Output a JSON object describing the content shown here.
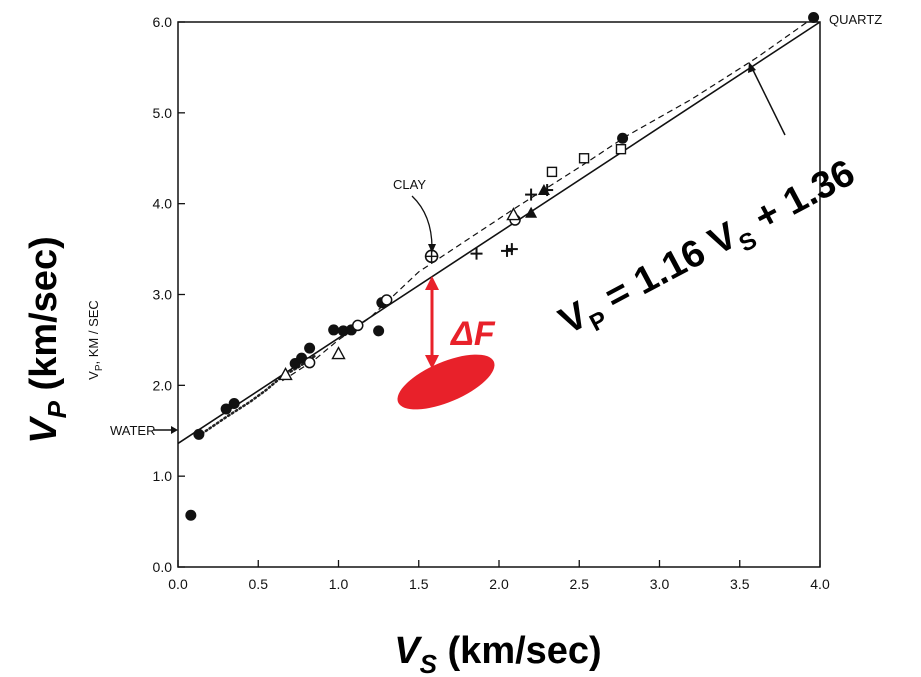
{
  "chart_data": {
    "type": "scatter",
    "xlabel": {
      "main": "V",
      "sub": "S",
      "rest": " (km/sec)"
    },
    "ylabel": {
      "main": "V",
      "sub": "P",
      "rest": " (km/sec)"
    },
    "inner_ylabel": {
      "main": "V",
      "sub": "P",
      "rest": ", KM / SEC"
    },
    "xlim": [
      0,
      4.0
    ],
    "ylim": [
      0,
      6.0
    ],
    "x_ticks": [
      "0.0",
      "0.5",
      "1.0",
      "1.5",
      "2.0",
      "2.5",
      "3.0",
      "3.5",
      "4.0"
    ],
    "y_ticks": [
      "0.0",
      "1.0",
      "2.0",
      "3.0",
      "4.0",
      "5.0",
      "6.0"
    ],
    "grid": false,
    "fit_line": {
      "slope": 1.16,
      "intercept": 1.36,
      "equation": {
        "v": "V",
        "p": "P",
        "eq": " = 1.16 V",
        "s": "S",
        "tail": " + 1.36"
      }
    },
    "annotations": {
      "clay": {
        "label": "CLAY",
        "x": 1.58,
        "y": 3.42
      },
      "water": {
        "label": "WATER",
        "y": 1.5
      },
      "quartz": {
        "label": "QUARTZ",
        "x": 3.96,
        "y": 6.05
      },
      "delta": {
        "label": "ΔF",
        "color": "#e8212a"
      }
    },
    "series": [
      {
        "marker": "filled-circle",
        "points": [
          [
            0.08,
            0.57
          ],
          [
            0.13,
            1.46
          ],
          [
            0.3,
            1.74
          ],
          [
            0.35,
            1.8
          ],
          [
            0.73,
            2.24
          ],
          [
            0.77,
            2.3
          ],
          [
            0.82,
            2.41
          ],
          [
            0.97,
            2.61
          ],
          [
            1.03,
            2.6
          ],
          [
            1.08,
            2.61
          ],
          [
            1.25,
            2.6
          ],
          [
            1.27,
            2.91
          ],
          [
            2.77,
            4.72
          ],
          [
            3.96,
            6.05
          ]
        ]
      },
      {
        "marker": "open-circle",
        "points": [
          [
            0.82,
            2.25
          ],
          [
            1.12,
            2.66
          ],
          [
            1.3,
            2.94
          ],
          [
            2.1,
            3.82
          ]
        ]
      },
      {
        "marker": "open-triangle",
        "points": [
          [
            0.67,
            2.12
          ],
          [
            1.0,
            2.35
          ],
          [
            2.09,
            3.88
          ]
        ]
      },
      {
        "marker": "filled-triangle",
        "points": [
          [
            2.2,
            3.9
          ],
          [
            2.28,
            4.15
          ]
        ]
      },
      {
        "marker": "open-square",
        "points": [
          [
            2.33,
            4.35
          ],
          [
            2.53,
            4.5
          ],
          [
            2.76,
            4.6
          ]
        ]
      },
      {
        "marker": "plus",
        "points": [
          [
            1.86,
            3.45
          ],
          [
            2.05,
            3.48
          ],
          [
            2.08,
            3.5
          ],
          [
            2.2,
            4.1
          ],
          [
            2.3,
            4.15
          ]
        ]
      }
    ],
    "dotted_curve": [
      [
        0.15,
        1.47
      ],
      [
        0.3,
        1.65
      ],
      [
        0.45,
        1.82
      ],
      [
        0.55,
        1.95
      ],
      [
        0.65,
        2.1
      ],
      [
        0.75,
        2.2
      ],
      [
        0.85,
        2.32
      ]
    ],
    "dashed_curve": [
      [
        0.65,
        2.05
      ],
      [
        0.85,
        2.28
      ],
      [
        1.0,
        2.5
      ],
      [
        1.2,
        2.75
      ],
      [
        1.5,
        3.25
      ],
      [
        1.8,
        3.6
      ],
      [
        2.1,
        3.95
      ],
      [
        2.5,
        4.4
      ],
      [
        2.8,
        4.75
      ],
      [
        3.2,
        5.15
      ],
      [
        3.6,
        5.6
      ],
      [
        3.96,
        6.05
      ]
    ]
  }
}
